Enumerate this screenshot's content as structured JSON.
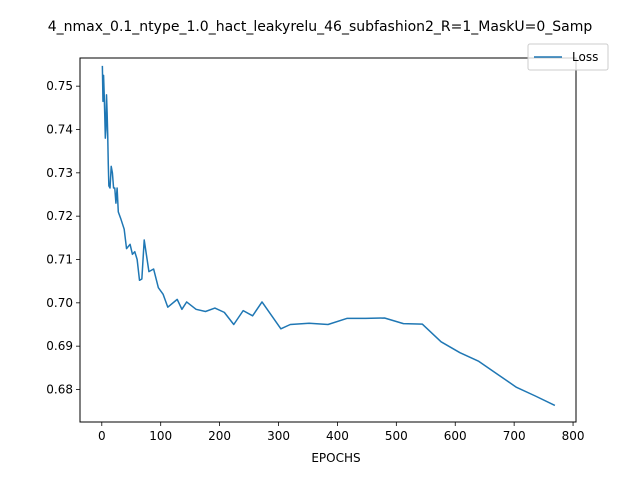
{
  "chart_data": {
    "type": "line",
    "title": "4_nmax_0.1_ntype_1.0_hact_leakyrelu_46_subfashion2_R=1_MaskU=0_Samp",
    "xlabel": "EPOCHS",
    "ylabel": "",
    "xlim": [
      -37,
      805
    ],
    "ylim": [
      0.6725,
      0.7565
    ],
    "xticks": [
      0,
      100,
      200,
      300,
      400,
      500,
      600,
      700,
      800
    ],
    "yticks": [
      0.68,
      0.69,
      0.7,
      0.71,
      0.72,
      0.73,
      0.74,
      0.75
    ],
    "grid": false,
    "legend": "top-right",
    "colors": {
      "Loss": "#1f77b4"
    },
    "series": [
      {
        "name": "Loss",
        "x": [
          1,
          2,
          3,
          4,
          5,
          6,
          7,
          8,
          9,
          10,
          11,
          12,
          14,
          16,
          18,
          20,
          22,
          24,
          26,
          28,
          32,
          38,
          42,
          48,
          52,
          56,
          60,
          64,
          68,
          72,
          80,
          88,
          96,
          104,
          112,
          128,
          136,
          144,
          160,
          176,
          192,
          208,
          224,
          240,
          256,
          272,
          304,
          320,
          352,
          384,
          416,
          448,
          480,
          512,
          544,
          576,
          608,
          640,
          672,
          704,
          736,
          768
        ],
        "values": [
          0.7545,
          0.7465,
          0.7525,
          0.7485,
          0.7435,
          0.738,
          0.74,
          0.748,
          0.744,
          0.739,
          0.732,
          0.727,
          0.7265,
          0.7315,
          0.73,
          0.7265,
          0.7265,
          0.723,
          0.7265,
          0.721,
          0.7195,
          0.717,
          0.7125,
          0.7135,
          0.7112,
          0.7118,
          0.71,
          0.7052,
          0.7055,
          0.7145,
          0.7072,
          0.7078,
          0.7035,
          0.702,
          0.699,
          0.7008,
          0.6985,
          0.7002,
          0.6985,
          0.698,
          0.6988,
          0.6978,
          0.695,
          0.6982,
          0.697,
          0.7002,
          0.694,
          0.695,
          0.6953,
          0.695,
          0.6964,
          0.6964,
          0.6965,
          0.6952,
          0.6951,
          0.691,
          0.6885,
          0.6865,
          0.6835,
          0.6805,
          0.6785,
          0.6764
        ]
      }
    ]
  }
}
